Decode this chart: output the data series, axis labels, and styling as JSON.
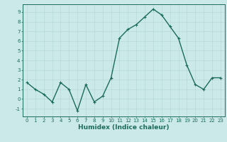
{
  "x": [
    0,
    1,
    2,
    3,
    4,
    5,
    6,
    7,
    8,
    9,
    10,
    11,
    12,
    13,
    14,
    15,
    16,
    17,
    18,
    19,
    20,
    21,
    22,
    23
  ],
  "y": [
    1.7,
    1.0,
    0.5,
    -0.3,
    1.7,
    1.0,
    -1.2,
    1.5,
    -0.3,
    0.3,
    2.2,
    6.3,
    7.2,
    7.7,
    8.5,
    9.3,
    8.7,
    7.5,
    6.3,
    3.5,
    1.5,
    1.0,
    2.2,
    2.2
  ],
  "line_color": "#1a6b5a",
  "marker": "+",
  "marker_size": 3.5,
  "marker_edge_width": 0.8,
  "background_color": "#cce9e9",
  "grid_color": "#b8d8d8",
  "xlabel": "Humidex (Indice chaleur)",
  "ylim": [
    -1.8,
    9.8
  ],
  "xlim": [
    -0.5,
    23.5
  ],
  "yticks": [
    -1,
    0,
    1,
    2,
    3,
    4,
    5,
    6,
    7,
    8,
    9
  ],
  "xticks": [
    0,
    1,
    2,
    3,
    4,
    5,
    6,
    7,
    8,
    9,
    10,
    11,
    12,
    13,
    14,
    15,
    16,
    17,
    18,
    19,
    20,
    21,
    22,
    23
  ],
  "tick_fontsize": 5.0,
  "xlabel_fontsize": 6.5,
  "line_width": 1.0,
  "spine_color": "#1a6b5a"
}
